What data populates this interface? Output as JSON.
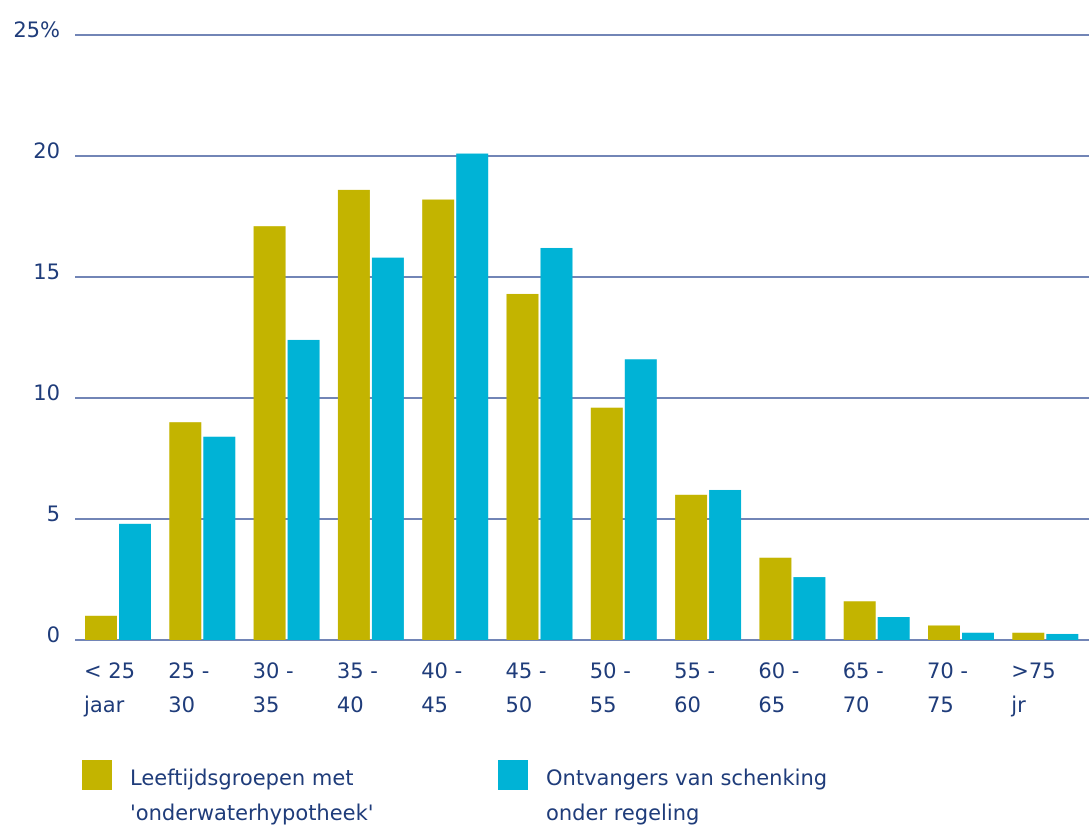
{
  "chart_data": {
    "type": "bar",
    "categories": [
      "< 25 jaar",
      "25 - 30",
      "30 - 35",
      "35 - 40",
      "40 - 45",
      "45 - 50",
      "50 - 55",
      "55 - 60",
      "60 - 65",
      "65 - 70",
      "70 - 75",
      ">75 jr"
    ],
    "series": [
      {
        "name": "Leeftijdsgroepen met 'onderwaterhypotheek'",
        "color": "#c3b400",
        "values": [
          1.0,
          9.0,
          17.1,
          18.6,
          18.2,
          14.3,
          9.6,
          6.0,
          3.4,
          1.6,
          0.6,
          0.3
        ]
      },
      {
        "name": "Ontvangers van schenking onder regeling",
        "color": "#00b3d6",
        "values": [
          4.8,
          8.4,
          12.4,
          15.8,
          20.1,
          16.2,
          11.6,
          6.2,
          2.6,
          0.95,
          0.3,
          0.25
        ]
      }
    ],
    "ylim": [
      0,
      25
    ],
    "yticks": [
      0,
      5,
      10,
      15,
      20,
      {
        "value": 25,
        "label": "25%"
      }
    ],
    "grid": true,
    "legend": "bottom"
  }
}
